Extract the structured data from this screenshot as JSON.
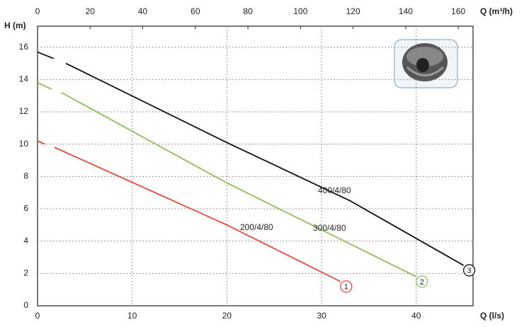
{
  "chart_data": {
    "type": "line",
    "xlabel": "Q (l/s)",
    "x2label": "Q (m³/h)",
    "ylabel": "H (m)",
    "xlim": [
      0,
      46
    ],
    "xticks": [
      0,
      10,
      20,
      30,
      40
    ],
    "x2lim": [
      0,
      165.6
    ],
    "x2ticks": [
      0,
      20,
      40,
      60,
      80,
      100,
      120,
      140,
      160
    ],
    "ylim": [
      0,
      17.3
    ],
    "yticks": [
      0,
      2,
      4,
      6,
      8,
      10,
      12,
      14,
      16
    ],
    "grid": true,
    "series": [
      {
        "name": "200/4/80",
        "end_label": "1",
        "color": "#e8473a",
        "x": [
          0,
          0.8,
          null,
          1.8,
          20,
          32
        ],
        "values": [
          10.2,
          10.0,
          null,
          9.8,
          5.0,
          1.5
        ]
      },
      {
        "name": "300/4/80",
        "end_label": "2",
        "color": "#8cbf5a",
        "x": [
          0,
          1.5,
          null,
          2.5,
          20,
          40
        ],
        "values": [
          13.8,
          13.4,
          null,
          13.2,
          7.6,
          1.8
        ]
      },
      {
        "name": "400/4/80",
        "end_label": "3",
        "color": "#111111",
        "x": [
          0,
          1.7,
          null,
          3,
          20,
          33,
          45
        ],
        "values": [
          15.7,
          15.3,
          null,
          15.0,
          10.1,
          6.5,
          2.5
        ]
      }
    ]
  }
}
